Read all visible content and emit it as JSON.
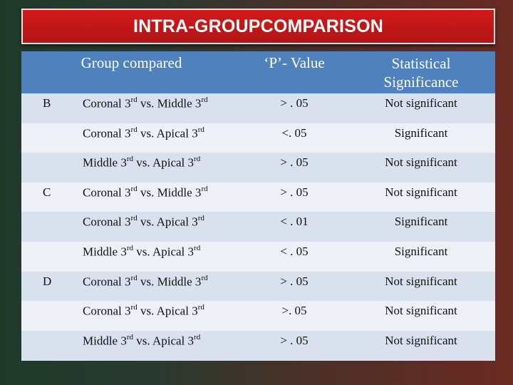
{
  "title": "INTRA-GROUPCOMPARISON",
  "headers": {
    "group_compared": "Group compared",
    "p_value": "‘P’- Value",
    "significance_line1": "Statistical",
    "significance_line2": "Significance"
  },
  "groups": [
    "B",
    "C",
    "D"
  ],
  "rows": [
    {
      "a": "Coronal 3",
      "a_sup": "rd",
      "mid": " vs. Middle 3",
      "b_sup": "rd",
      "p": "> . 05",
      "sig": "Not significant"
    },
    {
      "a": "Coronal 3",
      "a_sup": "rd",
      "mid": " vs. Apical 3",
      "b_sup": "rd",
      "p": "<. 05",
      "sig": "Significant"
    },
    {
      "a": "Middle 3",
      "a_sup": "rd",
      "mid": " vs. Apical 3",
      "b_sup": "rd",
      "p": "> . 05",
      "sig": "Not significant"
    },
    {
      "a": "Coronal 3",
      "a_sup": "rd",
      "mid": " vs. Middle 3",
      "b_sup": "rd",
      "p": "> . 05",
      "sig": "Not significant"
    },
    {
      "a": "Coronal 3",
      "a_sup": "rd",
      "mid": " vs. Apical 3",
      "b_sup": "rd",
      "p": "< . 01",
      "sig": "Significant"
    },
    {
      "a": "Middle 3",
      "a_sup": "rd",
      "mid": " vs. Apical 3",
      "b_sup": "rd",
      "p": "< . 05",
      "sig": "Significant"
    },
    {
      "a": "Coronal 3",
      "a_sup": "rd",
      "mid": " vs. Middle 3",
      "b_sup": "rd",
      "p": "> . 05",
      "sig": "Not significant"
    },
    {
      "a": "Coronal 3",
      "a_sup": "rd",
      "mid": " vs. Apical 3",
      "b_sup": "rd",
      "p": ">. 05",
      "sig": "Not significant"
    },
    {
      "a": "Middle 3",
      "a_sup": "rd",
      "mid": " vs. Apical 3",
      "b_sup": "rd",
      "p": "> . 05",
      "sig": "Not significant"
    }
  ]
}
